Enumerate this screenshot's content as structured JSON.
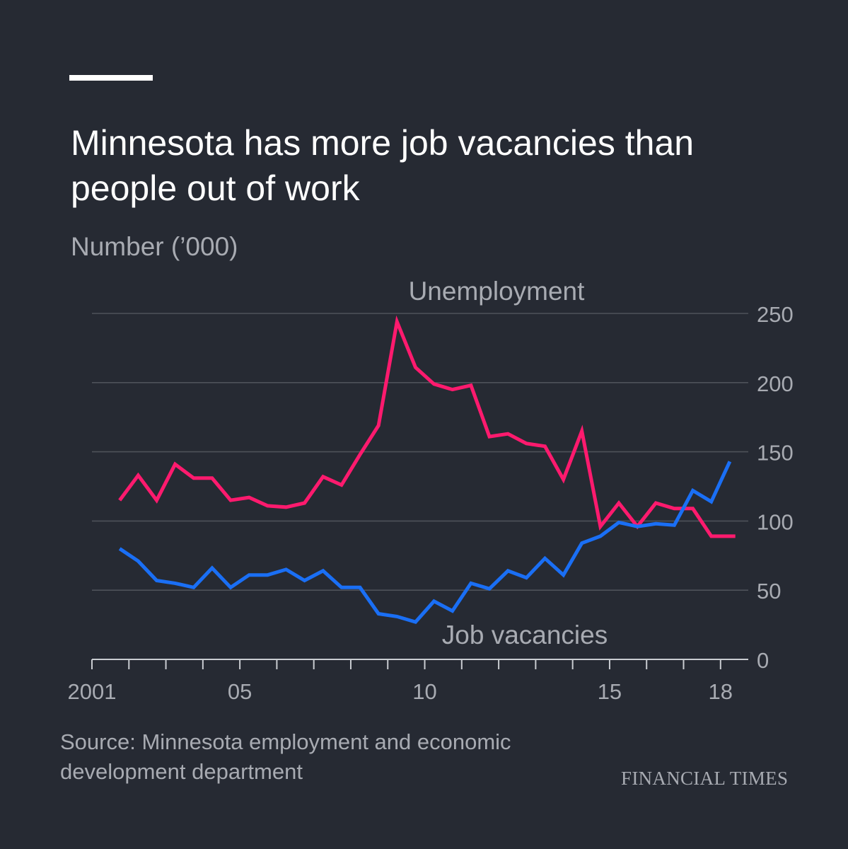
{
  "header": {
    "title": "Minnesota has more job vacancies than people out of work",
    "subtitle": "Number (’000)"
  },
  "footer": {
    "source": "Source: Minnesota employment and economic development department",
    "brand": "FINANCIAL TIMES"
  },
  "colors": {
    "background": "#262a33",
    "unemployment": "#ff1a6e",
    "vacancies": "#1a6ff5",
    "grid": "#4e525a",
    "text_muted": "#a8abb2"
  },
  "chart_data": {
    "type": "line",
    "title": "Minnesota has more job vacancies than people out of work",
    "ylabel": "Number (’000)",
    "xlabel": "",
    "xlim": [
      2001,
      2018.75
    ],
    "ylim": [
      0,
      250
    ],
    "yticks": [
      0,
      50,
      100,
      150,
      200,
      250
    ],
    "ytick_labels": [
      "0",
      "50",
      "100",
      "150",
      "200",
      "250"
    ],
    "xticks": [
      2001,
      2005,
      2010,
      2015,
      2018
    ],
    "xtick_labels": [
      "2001",
      "05",
      "10",
      "15",
      "18"
    ],
    "minor_xticks": [
      2001,
      2002,
      2003,
      2004,
      2005,
      2006,
      2007,
      2008,
      2009,
      2010,
      2011,
      2012,
      2013,
      2014,
      2015,
      2016,
      2017,
      2018
    ],
    "grid": true,
    "axis_side": "right",
    "x": [
      2001.75,
      2002.25,
      2002.75,
      2003.25,
      2003.75,
      2004.25,
      2004.75,
      2005.25,
      2005.75,
      2006.25,
      2006.75,
      2007.25,
      2007.75,
      2008.25,
      2008.75,
      2009.25,
      2009.75,
      2010.25,
      2010.75,
      2011.25,
      2011.75,
      2012.25,
      2012.75,
      2013.25,
      2013.75,
      2014.25,
      2014.75,
      2015.25,
      2015.75,
      2016.25,
      2016.75,
      2017.25,
      2017.75,
      2018.25
    ],
    "series": [
      {
        "name": "Unemployment",
        "label": "Unemployment",
        "color": "#ff1a6e",
        "values": [
          115,
          133,
          115,
          141,
          131,
          131,
          115,
          117,
          111,
          110,
          113,
          132,
          126,
          148,
          169,
          244,
          211,
          199,
          195,
          198,
          161,
          163,
          156,
          154,
          130,
          165,
          96,
          113,
          96,
          113,
          109,
          109,
          89,
          89
        ],
        "x_end": 2018.4
      },
      {
        "name": "Job vacancies",
        "label": "Job vacancies",
        "color": "#1a6ff5",
        "values": [
          80,
          71,
          57,
          55,
          52,
          66,
          52,
          61,
          61,
          65,
          57,
          64,
          52,
          52,
          33,
          31,
          27,
          42,
          35,
          55,
          51,
          64,
          59,
          73,
          61,
          84,
          89,
          99,
          96,
          98,
          97,
          122,
          114,
          143
        ],
        "x_end": 2018.0
      }
    ]
  }
}
